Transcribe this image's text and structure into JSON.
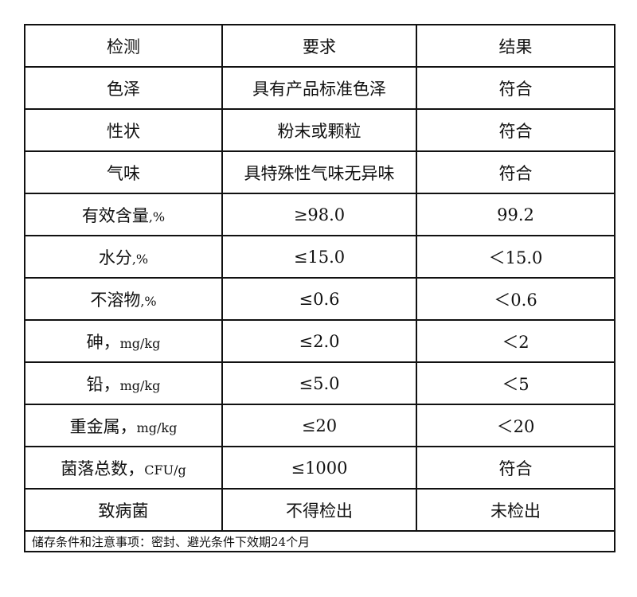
{
  "header": [
    "检测",
    "要求",
    "结果"
  ],
  "rows": [
    {
      "item": "色泽",
      "unit": "",
      "requirement": "具有产品标准色泽",
      "result": "符合"
    },
    {
      "item": "性状",
      "unit": "",
      "requirement": "粉末或颗粒",
      "result": "符合"
    },
    {
      "item": "气味",
      "unit": "",
      "requirement": "具特殊性气味无异味",
      "result": "符合"
    },
    {
      "item": "有效含量",
      "unit": ",%",
      "requirement": "≥98.0",
      "result": "99.2"
    },
    {
      "item": "水分",
      "unit": ",%",
      "requirement": "≤15.0",
      "result": "＜15.0"
    },
    {
      "item": "不溶物",
      "unit": ",%",
      "requirement": "≤0.6",
      "result": "＜0.6"
    },
    {
      "item": "砷，",
      "unit": "mg/kg",
      "requirement": "≤2.0",
      "result": "＜2"
    },
    {
      "item": "铅，",
      "unit": "mg/kg",
      "requirement": "≤5.0",
      "result": "＜5"
    },
    {
      "item": "重金属，",
      "unit": "mg/kg",
      "requirement": "≤20",
      "result": "＜20"
    },
    {
      "item": "菌落总数，",
      "unit": "CFU/g",
      "requirement": "≤1000",
      "result": "符合"
    },
    {
      "item": "致病菌",
      "unit": "",
      "requirement": "不得检出",
      "result": "未检出"
    }
  ],
  "note": "储存条件和注意事项：密封、避光条件下效期24个月"
}
